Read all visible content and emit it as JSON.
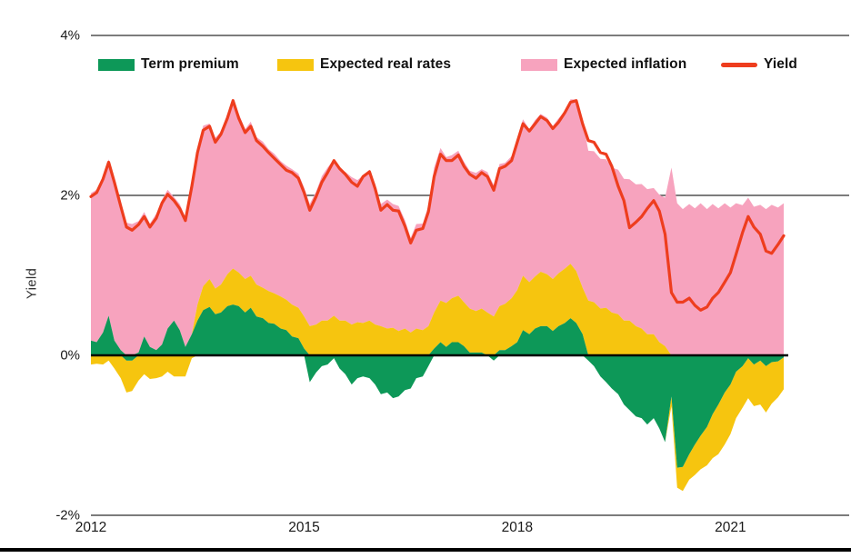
{
  "y_axis": {
    "label": "Yield",
    "ticks": [
      {
        "value": 4,
        "label": "4%"
      },
      {
        "value": 2,
        "label": "2%"
      },
      {
        "value": 0,
        "label": "0%"
      },
      {
        "value": -2,
        "label": "-2%"
      }
    ]
  },
  "x_axis": {
    "ticks": [
      {
        "value": 2012,
        "label": "2012"
      },
      {
        "value": 2015,
        "label": "2015"
      },
      {
        "value": 2018,
        "label": "2018"
      },
      {
        "value": 2021,
        "label": "2021"
      }
    ]
  },
  "legend": [
    {
      "label": "Term premium",
      "color": "#0d9858",
      "swatch": "area"
    },
    {
      "label": "Expected real rates",
      "color": "#f6c50f",
      "swatch": "area"
    },
    {
      "label": "Expected inflation",
      "color": "#f7a3be",
      "swatch": "area"
    },
    {
      "label": "Yield",
      "color": "#ee3d1e",
      "swatch": "line"
    }
  ],
  "colors": {
    "grid": "#2e2e2e",
    "zero_line": "#000000",
    "tick_text": "#1a1a1a"
  },
  "chart_data": {
    "type": "area",
    "title": "",
    "xlabel": "",
    "ylabel": "Yield",
    "xlim": [
      2012,
      2021.75
    ],
    "ylim": [
      -2,
      4
    ],
    "grid": "horizontal lines at 4%, 2%, -2%; bold black line at 0%",
    "legend_position": "top",
    "stacking": "components sign-stacked around zero (green then yellow then pink above zero; green then yellow below zero); Yield drawn as independent red line",
    "x": [
      2012.0,
      2012.08,
      2012.17,
      2012.25,
      2012.33,
      2012.42,
      2012.5,
      2012.58,
      2012.67,
      2012.75,
      2012.83,
      2012.92,
      2013.0,
      2013.08,
      2013.17,
      2013.25,
      2013.33,
      2013.42,
      2013.5,
      2013.58,
      2013.67,
      2013.75,
      2013.83,
      2013.92,
      2014.0,
      2014.08,
      2014.17,
      2014.25,
      2014.33,
      2014.42,
      2014.5,
      2014.58,
      2014.67,
      2014.75,
      2014.83,
      2014.92,
      2015.0,
      2015.08,
      2015.17,
      2015.25,
      2015.33,
      2015.42,
      2015.5,
      2015.58,
      2015.67,
      2015.75,
      2015.83,
      2015.92,
      2016.0,
      2016.08,
      2016.17,
      2016.25,
      2016.33,
      2016.42,
      2016.5,
      2016.58,
      2016.67,
      2016.75,
      2016.83,
      2016.92,
      2017.0,
      2017.08,
      2017.17,
      2017.25,
      2017.33,
      2017.42,
      2017.5,
      2017.58,
      2017.67,
      2017.75,
      2017.83,
      2017.92,
      2018.0,
      2018.08,
      2018.17,
      2018.25,
      2018.33,
      2018.42,
      2018.5,
      2018.58,
      2018.67,
      2018.75,
      2018.83,
      2018.92,
      2019.0,
      2019.08,
      2019.17,
      2019.25,
      2019.33,
      2019.42,
      2019.5,
      2019.58,
      2019.67,
      2019.75,
      2019.83,
      2019.92,
      2020.0,
      2020.08,
      2020.17,
      2020.25,
      2020.33,
      2020.42,
      2020.5,
      2020.58,
      2020.67,
      2020.75,
      2020.83,
      2020.92,
      2021.0,
      2021.08,
      2021.17,
      2021.25,
      2021.33,
      2021.42,
      2021.5,
      2021.58,
      2021.67,
      2021.75
    ],
    "series": [
      {
        "name": "Term premium",
        "color": "#0d9858",
        "role": "component",
        "values": [
          0.2,
          0.15,
          0.3,
          0.48,
          0.2,
          0.05,
          -0.05,
          -0.08,
          0.05,
          0.22,
          0.12,
          0.05,
          0.15,
          0.32,
          0.45,
          0.3,
          0.12,
          0.25,
          0.45,
          0.55,
          0.62,
          0.5,
          0.55,
          0.6,
          0.65,
          0.6,
          0.55,
          0.58,
          0.5,
          0.45,
          0.42,
          0.38,
          0.35,
          0.3,
          0.25,
          0.2,
          0.1,
          -0.35,
          -0.2,
          -0.15,
          -0.1,
          -0.05,
          -0.15,
          -0.25,
          -0.35,
          -0.3,
          -0.25,
          -0.3,
          -0.35,
          -0.5,
          -0.45,
          -0.55,
          -0.5,
          -0.45,
          -0.4,
          -0.3,
          -0.25,
          -0.15,
          0.1,
          0.15,
          0.12,
          0.15,
          0.18,
          0.1,
          0.05,
          0.02,
          0.05,
          0.0,
          -0.05,
          0.05,
          0.08,
          0.1,
          0.18,
          0.3,
          0.28,
          0.32,
          0.38,
          0.35,
          0.32,
          0.35,
          0.42,
          0.45,
          0.42,
          0.25,
          -0.05,
          -0.15,
          -0.25,
          -0.35,
          -0.4,
          -0.5,
          -0.6,
          -0.7,
          -0.75,
          -0.8,
          -0.85,
          -0.8,
          -0.9,
          -1.1,
          -0.5,
          -1.42,
          -1.38,
          -1.25,
          -1.1,
          -1.02,
          -0.88,
          -0.75,
          -0.6,
          -0.48,
          -0.35,
          -0.22,
          -0.12,
          -0.05,
          -0.1,
          -0.08,
          -0.12,
          -0.1,
          -0.06,
          -0.04
        ]
      },
      {
        "name": "Expected real rates",
        "color": "#f6c50f",
        "role": "component",
        "values": [
          -0.1,
          -0.12,
          -0.1,
          -0.08,
          -0.15,
          -0.3,
          -0.4,
          -0.38,
          -0.3,
          -0.25,
          -0.28,
          -0.3,
          -0.25,
          -0.22,
          -0.25,
          -0.28,
          -0.25,
          -0.05,
          0.2,
          0.3,
          0.35,
          0.32,
          0.35,
          0.4,
          0.45,
          0.42,
          0.42,
          0.4,
          0.4,
          0.38,
          0.4,
          0.38,
          0.4,
          0.38,
          0.4,
          0.38,
          0.4,
          0.35,
          0.4,
          0.42,
          0.45,
          0.48,
          0.45,
          0.42,
          0.4,
          0.4,
          0.42,
          0.42,
          0.4,
          0.35,
          0.35,
          0.33,
          0.32,
          0.32,
          0.3,
          0.32,
          0.33,
          0.35,
          0.45,
          0.52,
          0.55,
          0.55,
          0.58,
          0.55,
          0.55,
          0.52,
          0.55,
          0.52,
          0.5,
          0.55,
          0.58,
          0.6,
          0.65,
          0.68,
          0.65,
          0.65,
          0.68,
          0.65,
          0.65,
          0.66,
          0.68,
          0.68,
          0.65,
          0.58,
          0.7,
          0.65,
          0.6,
          0.58,
          0.55,
          0.5,
          0.45,
          0.42,
          0.38,
          0.32,
          0.28,
          0.25,
          0.18,
          0.1,
          -0.12,
          -0.25,
          -0.3,
          -0.32,
          -0.38,
          -0.42,
          -0.48,
          -0.55,
          -0.62,
          -0.65,
          -0.62,
          -0.58,
          -0.52,
          -0.5,
          -0.52,
          -0.55,
          -0.58,
          -0.52,
          -0.45,
          -0.4
        ]
      },
      {
        "name": "Expected inflation",
        "color": "#f7a3be",
        "role": "component",
        "values": [
          1.85,
          1.9,
          1.95,
          1.95,
          2.0,
          1.85,
          1.68,
          1.62,
          1.65,
          1.55,
          1.55,
          1.7,
          1.82,
          1.73,
          1.55,
          1.57,
          1.63,
          1.9,
          1.95,
          2.0,
          1.95,
          1.88,
          1.92,
          2.0,
          2.12,
          1.98,
          1.88,
          1.92,
          1.85,
          1.82,
          1.78,
          1.74,
          1.7,
          1.67,
          1.7,
          1.67,
          1.62,
          1.52,
          1.67,
          1.8,
          1.92,
          1.95,
          1.9,
          1.85,
          1.85,
          1.77,
          1.85,
          1.88,
          1.77,
          1.52,
          1.62,
          1.54,
          1.57,
          1.35,
          1.19,
          1.3,
          1.34,
          1.5,
          1.82,
          1.9,
          1.83,
          1.78,
          1.82,
          1.75,
          1.73,
          1.72,
          1.75,
          1.75,
          1.65,
          1.77,
          1.77,
          1.77,
          1.9,
          1.95,
          1.92,
          1.95,
          1.98,
          1.95,
          1.92,
          1.93,
          1.98,
          2.05,
          2.15,
          2.08,
          1.88,
          1.88,
          1.88,
          1.85,
          1.82,
          1.8,
          1.78,
          1.76,
          1.78,
          1.8,
          1.82,
          1.82,
          1.85,
          1.85,
          2.37,
          1.88,
          1.85,
          1.87,
          1.86,
          1.88,
          1.85,
          1.87,
          1.86,
          1.88,
          1.87,
          1.88,
          1.9,
          1.95,
          1.88,
          1.86,
          1.85,
          1.86,
          1.87,
          1.88
        ]
      },
      {
        "name": "Yield",
        "color": "#ee3d1e",
        "role": "line",
        "values": [
          2.0,
          2.02,
          2.22,
          2.4,
          2.18,
          1.85,
          1.62,
          1.55,
          1.65,
          1.72,
          1.62,
          1.7,
          1.92,
          2.0,
          1.95,
          1.82,
          1.7,
          2.1,
          2.55,
          2.8,
          2.88,
          2.65,
          2.78,
          2.95,
          3.2,
          2.95,
          2.8,
          2.85,
          2.7,
          2.6,
          2.55,
          2.45,
          2.4,
          2.3,
          2.3,
          2.2,
          2.05,
          1.8,
          2.0,
          2.15,
          2.3,
          2.42,
          2.35,
          2.25,
          2.18,
          2.1,
          2.25,
          2.28,
          2.1,
          1.8,
          1.9,
          1.8,
          1.82,
          1.6,
          1.42,
          1.55,
          1.6,
          1.78,
          2.25,
          2.5,
          2.45,
          2.42,
          2.52,
          2.35,
          2.28,
          2.2,
          2.3,
          2.22,
          2.08,
          2.32,
          2.38,
          2.42,
          2.68,
          2.88,
          2.82,
          2.88,
          3.0,
          2.92,
          2.85,
          2.9,
          3.05,
          3.15,
          3.2,
          2.88,
          2.7,
          2.65,
          2.55,
          2.5,
          2.38,
          2.1,
          1.95,
          1.58,
          1.68,
          1.72,
          1.85,
          1.92,
          1.82,
          1.5,
          0.8,
          0.65,
          0.68,
          0.7,
          0.64,
          0.55,
          0.62,
          0.7,
          0.8,
          0.9,
          1.05,
          1.25,
          1.55,
          1.72,
          1.62,
          1.5,
          1.32,
          1.26,
          1.4,
          1.48
        ]
      }
    ]
  }
}
